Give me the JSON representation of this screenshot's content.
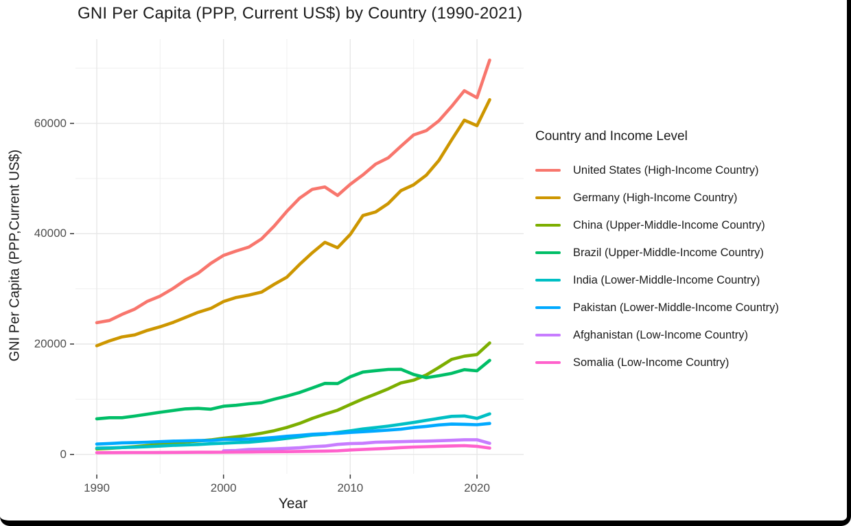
{
  "frame": {
    "border_color": "#000000",
    "background": "#ffffff"
  },
  "chart_data": {
    "type": "line",
    "title": "GNI Per Capita (PPP, Current US$) by Country (1990-2021)",
    "xlabel": "Year",
    "ylabel": "GNI Per Capita (PPP,Current US$)",
    "legend_title": "Country and Income Level",
    "legend_position": "right",
    "grid": "major and minor, light gray on white",
    "x_ticks": [
      "1990",
      "2000",
      "2010",
      "2020"
    ],
    "x_ticks_minor": [
      1995,
      2005,
      2015
    ],
    "y_ticks": [
      "0",
      "20000",
      "40000",
      "60000"
    ],
    "y_ticks_minor": [
      10000,
      30000,
      50000,
      70000
    ],
    "xlim": [
      1988.4,
      2022.6
    ],
    "ylim": [
      -3600,
      75100
    ],
    "x": [
      1990,
      1991,
      1992,
      1993,
      1994,
      1995,
      1996,
      1997,
      1998,
      1999,
      2000,
      2001,
      2002,
      2003,
      2004,
      2005,
      2006,
      2007,
      2008,
      2009,
      2010,
      2011,
      2012,
      2013,
      2014,
      2015,
      2016,
      2017,
      2018,
      2019,
      2020,
      2021
    ],
    "series": [
      {
        "name": "United States (High-Income Country)",
        "color": "#F8766D",
        "values": [
          23870,
          24270,
          25380,
          26340,
          27750,
          28690,
          30050,
          31610,
          32850,
          34620,
          36070,
          36850,
          37580,
          39050,
          41400,
          44060,
          46440,
          48040,
          48470,
          46930,
          48950,
          50650,
          52610,
          53750,
          55860,
          57900,
          58680,
          60470,
          63080,
          65910,
          64650,
          71460
        ]
      },
      {
        "name": "Germany (High-Income Country)",
        "color": "#CD9600",
        "values": [
          19690,
          20570,
          21290,
          21660,
          22480,
          23120,
          23900,
          24830,
          25750,
          26460,
          27700,
          28440,
          28870,
          29410,
          30830,
          32120,
          34430,
          36540,
          38430,
          37460,
          39870,
          43290,
          43940,
          45480,
          47800,
          48860,
          50600,
          53290,
          57000,
          60580,
          59580,
          64280
        ]
      },
      {
        "name": "China (Upper-Middle-Income Country)",
        "color": "#7CAE00",
        "values": [
          980,
          1080,
          1240,
          1410,
          1600,
          1810,
          2030,
          2250,
          2430,
          2620,
          2920,
          3180,
          3460,
          3830,
          4290,
          4880,
          5610,
          6520,
          7290,
          8000,
          9050,
          10040,
          10940,
          11890,
          12950,
          13450,
          14400,
          15770,
          17230,
          17800,
          18100,
          20200
        ]
      },
      {
        "name": "Brazil (Upper-Middle-Income Country)",
        "color": "#00BE67",
        "values": [
          6450,
          6650,
          6650,
          6950,
          7290,
          7630,
          7940,
          8250,
          8340,
          8190,
          8720,
          8900,
          9170,
          9380,
          10010,
          10570,
          11210,
          12030,
          12870,
          12830,
          14060,
          14920,
          15170,
          15400,
          15420,
          14480,
          13900,
          14260,
          14680,
          15360,
          15150,
          17040
        ]
      },
      {
        "name": "India (Lower-Middle-Income Country)",
        "color": "#00BFC4",
        "values": [
          1130,
          1170,
          1240,
          1310,
          1400,
          1500,
          1630,
          1700,
          1790,
          1930,
          2020,
          2130,
          2210,
          2420,
          2620,
          2900,
          3190,
          3500,
          3640,
          3970,
          4270,
          4600,
          4850,
          5130,
          5450,
          5790,
          6170,
          6530,
          6890,
          6960,
          6520,
          7340
        ]
      },
      {
        "name": "Pakistan (Lower-Middle-Income Country)",
        "color": "#00A9FF",
        "values": [
          1870,
          1970,
          2090,
          2130,
          2200,
          2300,
          2400,
          2440,
          2500,
          2530,
          2690,
          2730,
          2780,
          2900,
          3080,
          3280,
          3450,
          3650,
          3740,
          3810,
          3980,
          4110,
          4240,
          4400,
          4570,
          4870,
          5080,
          5340,
          5490,
          5450,
          5380,
          5600
        ]
      },
      {
        "name": "Afghanistan (Low-Income Country)",
        "color": "#C77CFF",
        "values": [
          null,
          null,
          null,
          null,
          null,
          null,
          null,
          null,
          null,
          null,
          650,
          700,
          900,
          950,
          1000,
          1100,
          1200,
          1400,
          1500,
          1800,
          1950,
          2000,
          2200,
          2250,
          2300,
          2360,
          2400,
          2480,
          2550,
          2650,
          2650,
          2000
        ]
      },
      {
        "name": "Somalia (Low-Income Country)",
        "color": "#FF61CC",
        "values": [
          300,
          310,
          320,
          330,
          340,
          350,
          360,
          370,
          380,
          390,
          400,
          420,
          440,
          460,
          480,
          500,
          530,
          560,
          600,
          650,
          800,
          900,
          1000,
          1100,
          1230,
          1330,
          1400,
          1470,
          1530,
          1580,
          1450,
          1150
        ]
      }
    ]
  },
  "styles": {
    "grid_major": "#e7e7e7",
    "grid_minor": "#efefef",
    "tick_mark": "#333333",
    "tick_text": "#4d4d4d",
    "text": "#1a1a1a"
  }
}
